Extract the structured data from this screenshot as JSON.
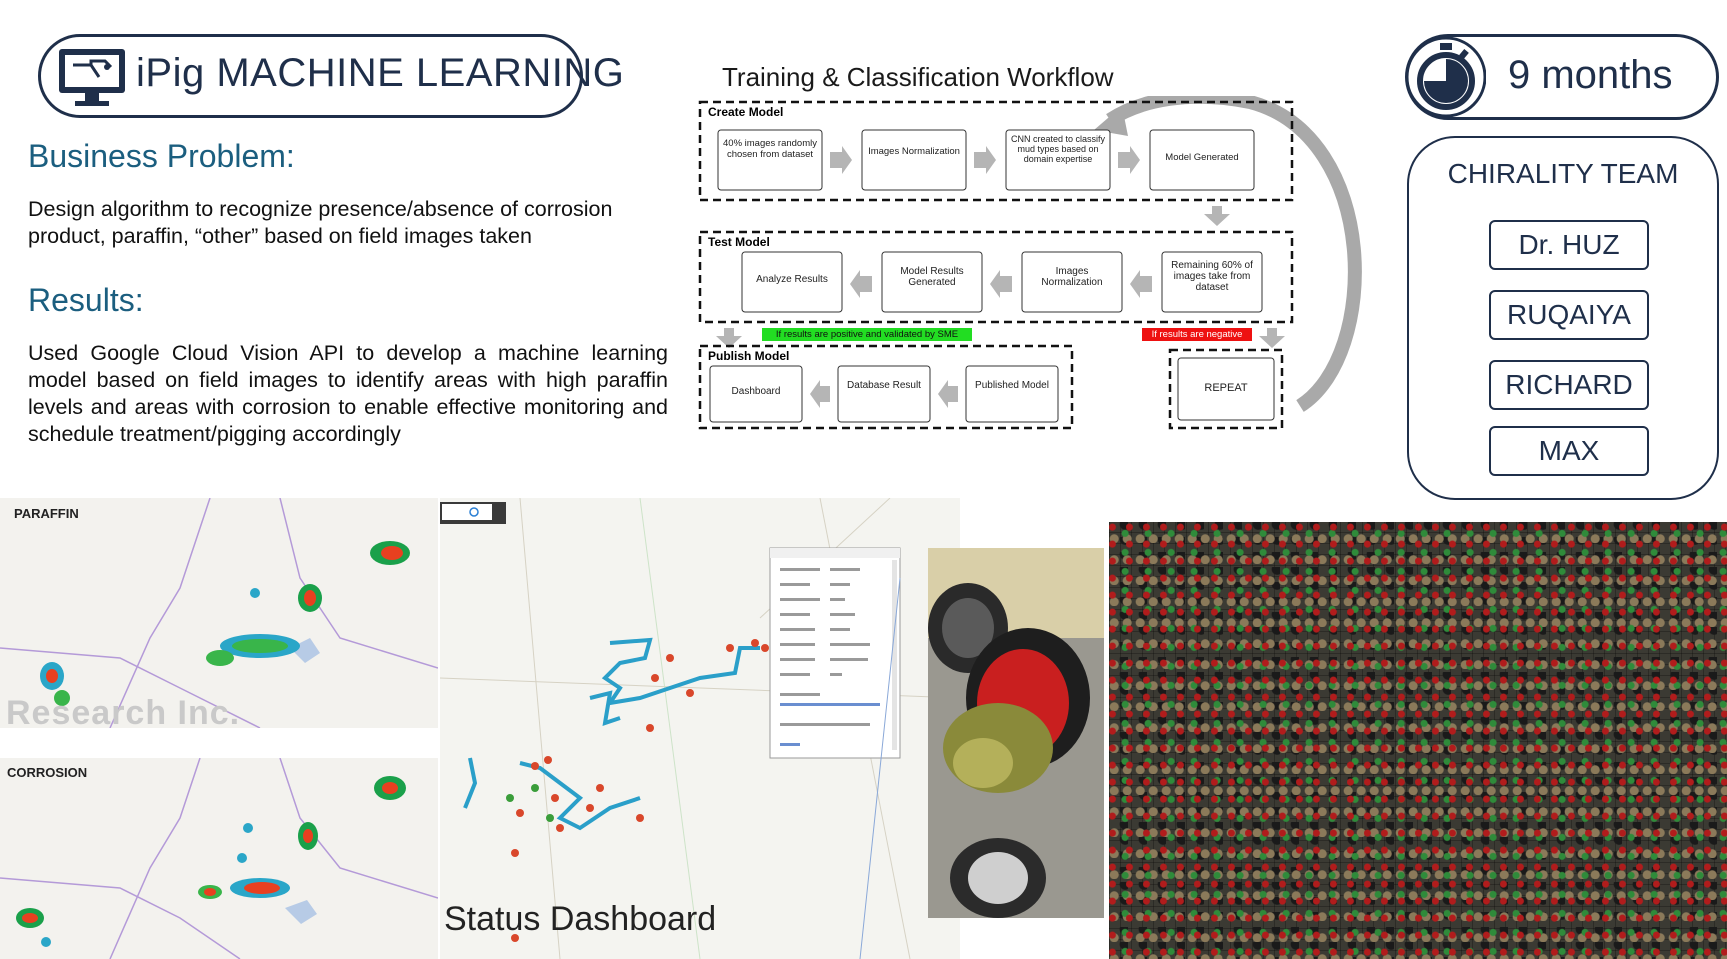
{
  "header": {
    "title": "iPig MACHINE LEARNING",
    "duration": "9 months"
  },
  "business_problem": {
    "heading": "Business Problem:",
    "text": "Design algorithm to recognize presence/absence of corrosion product, paraffin, “other” based on field images taken"
  },
  "results": {
    "heading": "Results:",
    "text": "Used Google Cloud Vision API to develop a machine learning model based on field images to identify areas with high paraffin levels and areas with corrosion to enable effective monitoring and schedule treatment/pigging accordingly"
  },
  "workflow": {
    "title": "Training & Classification Workflow",
    "create_model": {
      "label": "Create Model",
      "steps": [
        "40% images randomly chosen from dataset",
        "Images Normalization",
        "CNN created to classify mud types based on domain expertise",
        "Model Generated"
      ]
    },
    "test_model": {
      "label": "Test Model",
      "steps": [
        "Analyze Results",
        "Model Results Generated",
        "Images Normalization",
        "Remaining 60% of images take from dataset"
      ]
    },
    "positive_note": "If results are positive and validated by SME",
    "negative_note": "If results are negative",
    "publish_model": {
      "label": "Publish Model",
      "steps": [
        "Dashboard",
        "Database Result",
        "Published Model"
      ]
    },
    "repeat": "REPEAT"
  },
  "team": {
    "heading": "CHIRALITY TEAM",
    "members": [
      "Dr. HUZ",
      "RUQAIYA",
      "RICHARD",
      "MAX"
    ]
  },
  "maps": {
    "paraffin_label": "PARAFFIN",
    "corrosion_label": "CORROSION",
    "watermark": "Research Inc.",
    "status_label": "Status Dashboard"
  },
  "colors": {
    "navy": "#1f2f4a",
    "heading_blue": "#1b5e7f",
    "positive_green": "#22dd22",
    "negative_red": "#ee1111",
    "pipeline_blue": "#2a9fc9"
  },
  "icons": [
    "monitor-icon",
    "stopwatch-icon"
  ]
}
